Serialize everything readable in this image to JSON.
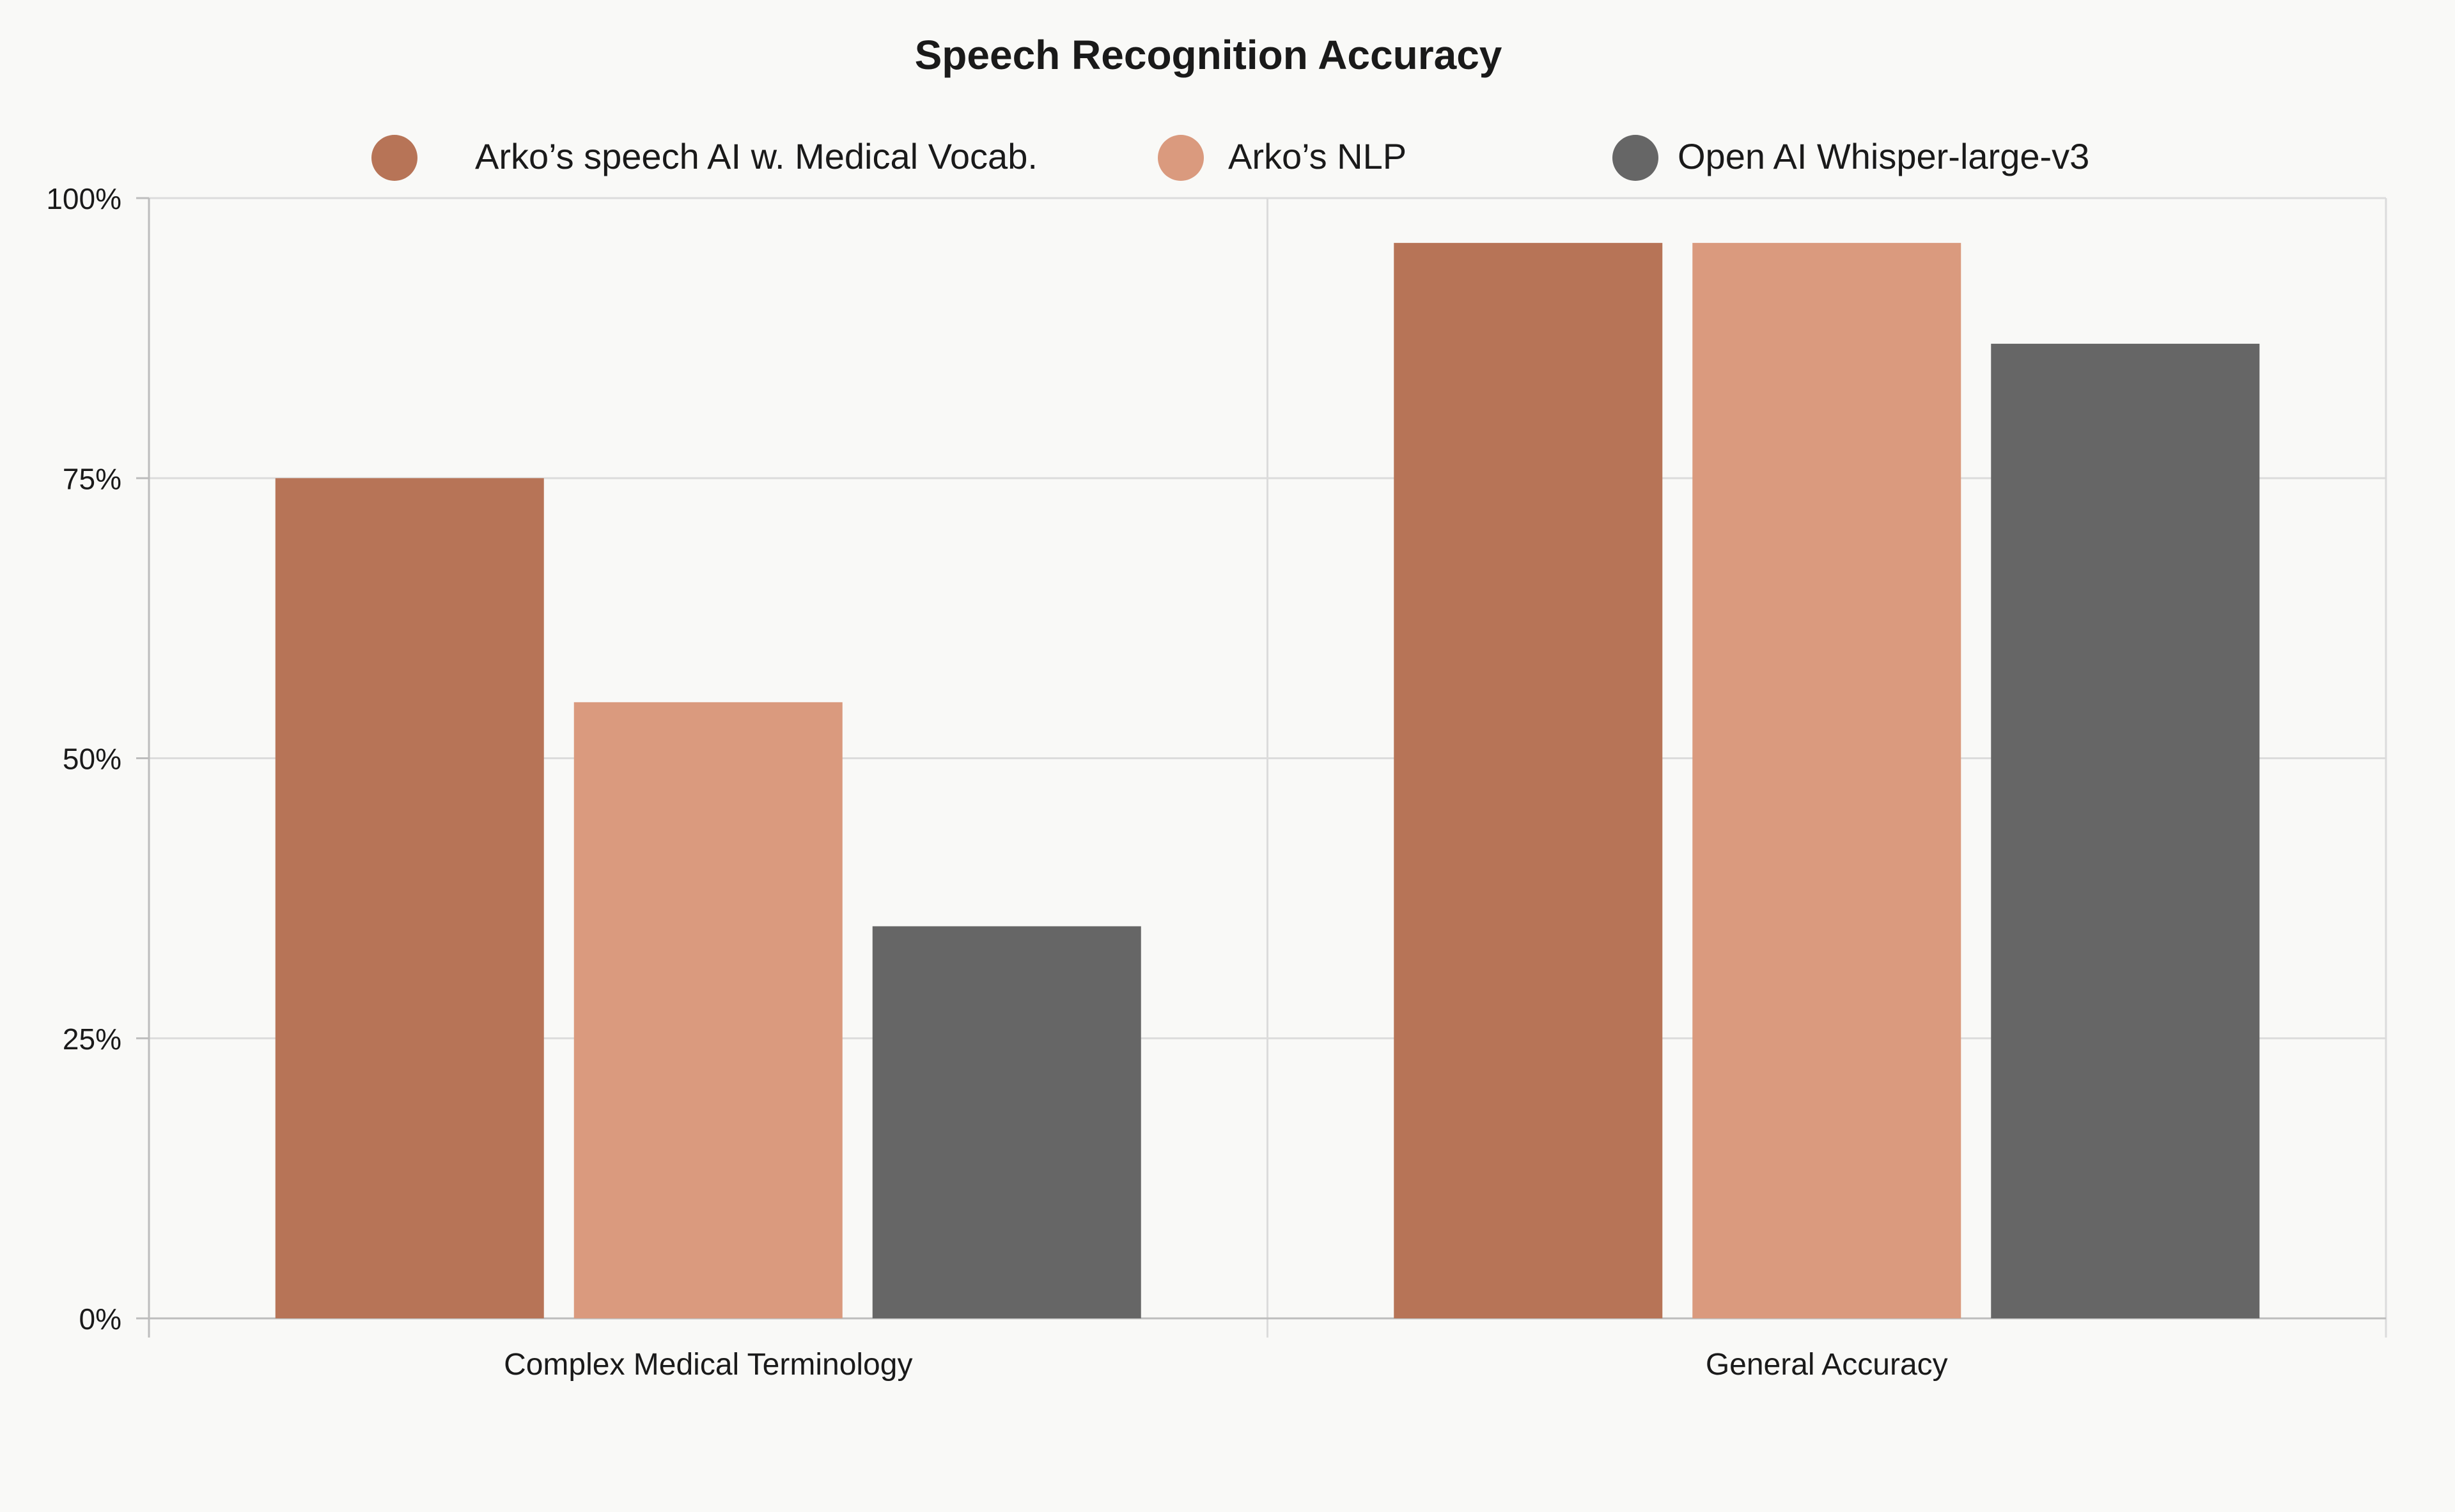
{
  "chart_data": {
    "type": "bar",
    "title": "Speech Recognition Accuracy",
    "xlabel": "",
    "ylabel": "",
    "categories": [
      "Complex Medical Terminology",
      "General Accuracy"
    ],
    "series": [
      {
        "name": "Arko’s speech AI w. Medical Vocab.",
        "color": "#b77457",
        "values": [
          75,
          96
        ]
      },
      {
        "name": "Arko’s NLP",
        "color": "#da9a7e",
        "values": [
          55,
          96
        ]
      },
      {
        "name": "Open AI Whisper-large-v3",
        "color": "#666666",
        "values": [
          35,
          87
        ]
      }
    ],
    "ylim": [
      0,
      100
    ],
    "yticks": [
      0,
      25,
      50,
      75,
      100
    ],
    "ytick_labels": [
      "0%",
      "25%",
      "50%",
      "75%",
      "100%"
    ],
    "grid": true,
    "legend_position": "top-center"
  }
}
